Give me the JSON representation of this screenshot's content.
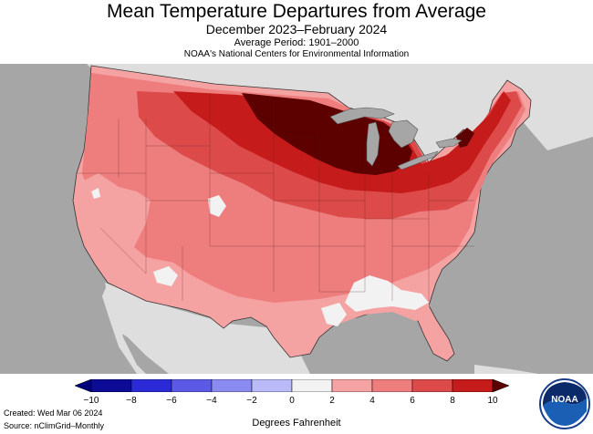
{
  "header": {
    "title": "Mean Temperature Departures from Average",
    "subtitle": "December 2023–February 2024",
    "period": "Average Period: 1901–2000",
    "source": "NOAA's National Centers for Environmental Information"
  },
  "map": {
    "region": "Contiguous United States",
    "colors": {
      "ocean": "#a6a6a6",
      "land_outside": "#dedede",
      "lakes": "#a6a6a6",
      "plus_0_2": "#f2f2f2",
      "plus_2_4": "#f5a2a2",
      "plus_4_6": "#ee7e7e",
      "plus_6_8": "#dc4a4a",
      "plus_8_10": "#c61b1b",
      "plus_10_plus": "#5c0000"
    }
  },
  "legend": {
    "ticks": [
      "−10",
      "−8",
      "−6",
      "−4",
      "−2",
      "0",
      "2",
      "4",
      "6",
      "8",
      "10"
    ],
    "colors": [
      "#0b0b96",
      "#2a2ad6",
      "#5a5ae6",
      "#8a8af0",
      "#babaf8",
      "#f2f2f2",
      "#f5a2a2",
      "#ee7e7e",
      "#dc4a4a",
      "#c61b1b"
    ],
    "end_low_color": "#00007a",
    "end_high_color": "#5c0000",
    "xlabel": "Degrees Fahrenheit"
  },
  "footer": {
    "created": "Created: Wed Mar 06 2024",
    "source": "Source: nClimGrid–Monthly"
  },
  "logo": {
    "text": "NOAA",
    "icon": "noaa-logo-icon"
  }
}
